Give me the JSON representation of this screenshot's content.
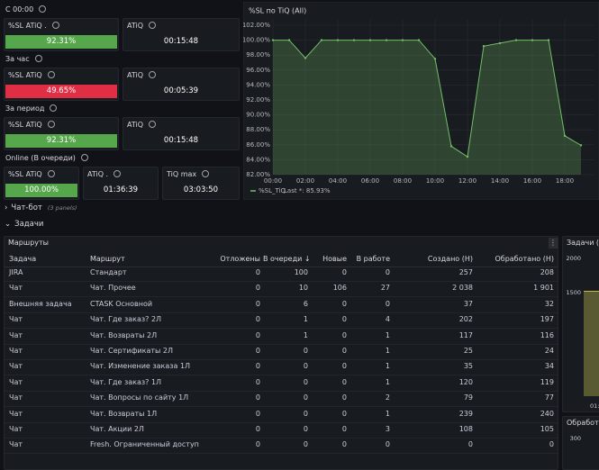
{
  "stat_groups": [
    {
      "title": "С 00:00",
      "panels": [
        {
          "title": "%SL ATiQ .",
          "value": "92.31%",
          "color": "#56a64b"
        },
        {
          "title": "ATiQ",
          "value": "00:15:48"
        }
      ]
    },
    {
      "title": "За час",
      "panels": [
        {
          "title": "%SL ATiQ",
          "value": "49.65%",
          "color": "#e02f44"
        },
        {
          "title": "ATiQ",
          "value": "00:05:39"
        }
      ]
    },
    {
      "title": "За период",
      "panels": [
        {
          "title": "%SL ATiQ",
          "value": "92.31%",
          "color": "#56a64b"
        },
        {
          "title": "ATiQ",
          "value": "00:15:48"
        }
      ]
    },
    {
      "title": "Online (В очереди)",
      "panels": [
        {
          "title": "%SL ATiQ",
          "value": "100.00%",
          "color": "#56a64b"
        },
        {
          "title": "ATiQ .",
          "value": "01:36:39"
        },
        {
          "title": "TiQ max",
          "value": "03:03:50"
        }
      ]
    }
  ],
  "chart_data": {
    "type": "line",
    "title": "%SL по TiQ (All)",
    "x": [
      0,
      1,
      2,
      3,
      4,
      5,
      6,
      7,
      8,
      9,
      10,
      11,
      12,
      13,
      14,
      15,
      16,
      17,
      18,
      19
    ],
    "series": [
      {
        "name": "%SL_TiQ",
        "color": "#73bf69",
        "values": [
          100,
          100,
          97.6,
          100,
          100,
          100,
          100,
          100,
          100,
          100,
          97.5,
          85.8,
          84.4,
          99.2,
          99.6,
          100,
          100,
          100,
          87.2,
          85.93
        ]
      }
    ],
    "legend_stat": "Last *: 85.93%",
    "xlim": [
      0,
      19
    ],
    "xticks": [
      {
        "value": 0,
        "label": "00:00"
      },
      {
        "value": 2,
        "label": "02:00"
      },
      {
        "value": 4,
        "label": "04:00"
      },
      {
        "value": 6,
        "label": "06:00"
      },
      {
        "value": 8,
        "label": "08:00"
      },
      {
        "value": 10,
        "label": "10:00"
      },
      {
        "value": 12,
        "label": "12:00"
      },
      {
        "value": 14,
        "label": "14:00"
      },
      {
        "value": 16,
        "label": "16:00"
      },
      {
        "value": 18,
        "label": "18:00"
      }
    ],
    "ylim": [
      82,
      102
    ],
    "yticks": [
      {
        "value": 82,
        "label": "82.00%"
      },
      {
        "value": 84,
        "label": "84.00%"
      },
      {
        "value": 86,
        "label": "86.00%"
      },
      {
        "value": 88,
        "label": "88.00%"
      },
      {
        "value": 90,
        "label": "90.00%"
      },
      {
        "value": 92,
        "label": "92.00%"
      },
      {
        "value": 94,
        "label": "94.00%"
      },
      {
        "value": 96,
        "label": "96.00%"
      },
      {
        "value": 98,
        "label": "98.00%"
      },
      {
        "value": 100,
        "label": "100.00%"
      },
      {
        "value": 102,
        "label": "102.00%"
      }
    ],
    "grid": true
  },
  "rows": [
    {
      "title": "Чат-бот",
      "note": "(3 panels)",
      "collapsed": true
    },
    {
      "title": "Задачи",
      "collapsed": false
    }
  ],
  "table": {
    "title": "Маршруты",
    "columns": [
      "Задача",
      "Маршрут",
      "Отложены",
      "В очереди ↓",
      "Новые",
      "В работе",
      "Создано (Н)",
      "Обработано (Н)"
    ],
    "rows": [
      [
        "JIRA",
        "Стандарт",
        0,
        100,
        0,
        0,
        257,
        208
      ],
      [
        "Чат",
        "Чат. Прочее",
        0,
        10,
        106,
        27,
        "2 038",
        "1 901"
      ],
      [
        "Внешняя задача",
        "CTASK Основной",
        0,
        6,
        0,
        0,
        37,
        32
      ],
      [
        "Чат",
        "Чат. Где заказ? 2Л",
        0,
        1,
        0,
        4,
        202,
        197
      ],
      [
        "Чат",
        "Чат. Возвраты 2Л",
        0,
        1,
        0,
        1,
        117,
        116
      ],
      [
        "Чат",
        "Чат. Сертификаты 2Л",
        0,
        0,
        0,
        1,
        25,
        24
      ],
      [
        "Чат",
        "Чат. Изменение заказа 1Л",
        0,
        0,
        0,
        1,
        35,
        34
      ],
      [
        "Чат",
        "Чат. Где заказ? 1Л",
        0,
        0,
        0,
        1,
        120,
        119
      ],
      [
        "Чат",
        "Чат. Вопросы по сайту 1Л",
        0,
        0,
        0,
        2,
        79,
        77
      ],
      [
        "Чат",
        "Чат. Возвраты 1Л",
        0,
        0,
        0,
        1,
        239,
        240
      ],
      [
        "Чат",
        "Чат. Акции 2Л",
        0,
        0,
        0,
        3,
        108,
        105
      ],
      [
        "Чат",
        "Fresh. Ограниченный доступ",
        0,
        0,
        0,
        0,
        0,
        0
      ]
    ]
  },
  "side_panels": [
    {
      "title": "Задачи (All",
      "ticks": [
        "2000",
        "1500"
      ],
      "x_label": "01:0"
    },
    {
      "title": "Обработа",
      "ticks": [
        "300"
      ]
    }
  ]
}
